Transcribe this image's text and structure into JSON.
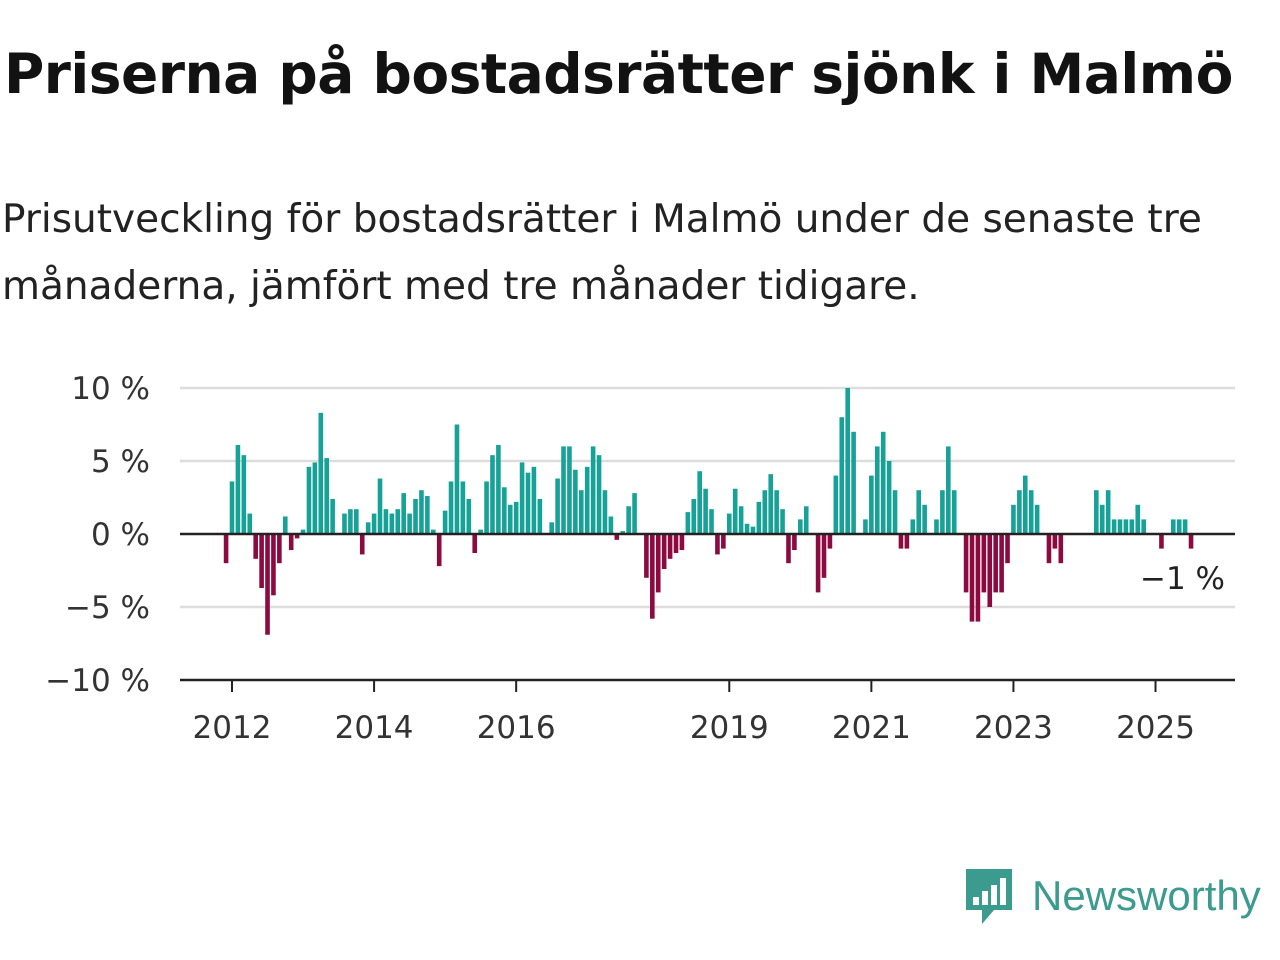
{
  "title": "Priserna på bostadsrätter sjönk i Malmö",
  "subtitle": "Prisutveckling för bostadsrätter i Malmö under de senaste tre månaderna, jämfört med tre månader tidigare.",
  "brand": {
    "name": "Newsworthy",
    "icon": "bar-chart-speech-bubble-icon",
    "color": "#3a9b8e"
  },
  "chart_data": {
    "type": "bar",
    "title": "",
    "xlabel": "",
    "ylabel": "",
    "ylim": [
      -10,
      10
    ],
    "yticks": [
      10,
      5,
      0,
      -5,
      -10
    ],
    "ytick_labels": [
      "10 %",
      "5 %",
      "0 %",
      "−5 %",
      "−10 %"
    ],
    "xtick_labels": [
      "2012",
      "2014",
      "2016",
      "2019",
      "2021",
      "2023",
      "2025"
    ],
    "grid": true,
    "positive_color": "#16a296",
    "negative_color": "#8c0a3f",
    "annotation": "−1 %",
    "x_start": "2011-12",
    "frequency": "monthly",
    "values": [
      -2,
      3.6,
      6.1,
      5.4,
      1.4,
      -1.7,
      -3.7,
      -6.9,
      -4.2,
      -2,
      1.2,
      -1.1,
      -0.3,
      0.3,
      4.6,
      4.9,
      8.3,
      5.2,
      2.4,
      0,
      1.4,
      1.7,
      1.7,
      -1.4,
      0.8,
      1.4,
      3.8,
      1.7,
      1.4,
      1.7,
      2.8,
      1.4,
      2.4,
      3,
      2.6,
      0.3,
      -2.2,
      1.6,
      3.6,
      7.5,
      3.6,
      2.4,
      -1.3,
      0.3,
      3.6,
      5.4,
      6.1,
      3.2,
      2,
      2.2,
      4.9,
      4.2,
      4.6,
      2.4,
      0,
      0.8,
      3.8,
      6,
      6,
      4.4,
      3,
      4.6,
      6,
      5.4,
      3,
      1.2,
      -0.4,
      0.2,
      1.9,
      2.8,
      0,
      -3,
      -5.8,
      -4,
      -2.4,
      -1.7,
      -1.3,
      -1.1,
      1.5,
      2.4,
      4.3,
      3.1,
      1.7,
      -1.4,
      -1,
      1.4,
      3.1,
      1.9,
      0.7,
      0.5,
      2.2,
      3,
      4.1,
      3,
      1.7,
      -2,
      -1.1,
      1,
      1.9,
      0,
      -4,
      -3,
      -1,
      4,
      8,
      10,
      7,
      0,
      1,
      4,
      6,
      7,
      5,
      3,
      -1,
      -1,
      1,
      3,
      2,
      0,
      1,
      3,
      6,
      3,
      0,
      -4,
      -6,
      -6,
      -4,
      -5,
      -4,
      -4,
      -2,
      2,
      3,
      4,
      3,
      2,
      0,
      -2,
      -1,
      -2,
      0,
      0,
      0,
      0,
      0,
      3,
      2,
      3,
      1,
      1,
      1,
      1,
      2,
      1,
      0,
      0,
      -1,
      0,
      1,
      1,
      1,
      -1
    ]
  }
}
